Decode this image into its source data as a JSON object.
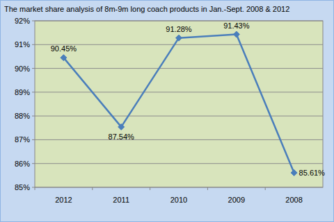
{
  "chart_data": {
    "type": "line",
    "title": "The market share analysis of 8m-9m long coach products in Jan.-Sept. 2008 & 2012",
    "categories": [
      "2012",
      "2011",
      "2010",
      "2009",
      "2008"
    ],
    "values": [
      90.45,
      87.54,
      91.28,
      91.43,
      85.61
    ],
    "value_labels": [
      "90.45%",
      "87.54%",
      "91.28%",
      "91.43%",
      "85.61%"
    ],
    "color": "#4a7ebb",
    "marker": "diamond",
    "line_style": "solid",
    "ylim": [
      85,
      92
    ],
    "yticks": [
      {
        "value": 85,
        "label": "85%"
      },
      {
        "value": 86,
        "label": "86%"
      },
      {
        "value": 87,
        "label": "87%"
      },
      {
        "value": 88,
        "label": "88%"
      },
      {
        "value": 89,
        "label": "89%"
      },
      {
        "value": 90,
        "label": "90%"
      },
      {
        "value": 91,
        "label": "91%"
      },
      {
        "value": 92,
        "label": "92%"
      }
    ],
    "grid": true,
    "data_labels": true
  }
}
